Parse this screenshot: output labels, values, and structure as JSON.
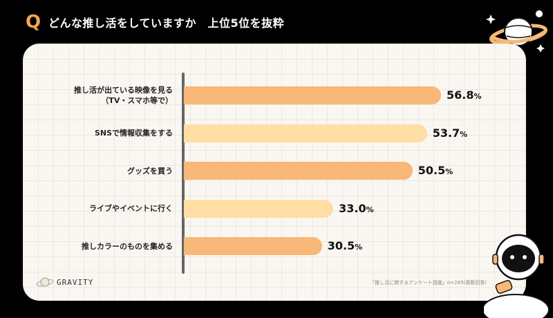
{
  "header": {
    "q_mark": "Q",
    "title": "どんな推し活をしていますか　上位5位を抜粋"
  },
  "chart_data": {
    "type": "bar",
    "orientation": "horizontal",
    "categories": [
      [
        "推し活が出ている映像を見る",
        "（TV・スマホ等で）"
      ],
      [
        "SNSで情報収集をする"
      ],
      [
        "グッズを買う"
      ],
      [
        "ライブやイベントに行く"
      ],
      [
        "推しカラーのものを集める"
      ]
    ],
    "values": [
      56.8,
      53.7,
      50.5,
      33.0,
      30.5
    ],
    "value_labels": [
      "56.8",
      "53.7",
      "50.5",
      "33.0",
      "30.5"
    ],
    "unit": "%",
    "bar_colors": [
      "#F8B877",
      "#FFDDA3",
      "#F8B877",
      "#FFDDA3",
      "#F8B877"
    ]
  },
  "source": "『推し活に関するアンケート調査』n=285(複数回答)",
  "logo": {
    "text": "GRAVITY",
    "icon": "planet-icon"
  },
  "decorations": [
    "planet-icon",
    "astronaut-icon"
  ]
}
